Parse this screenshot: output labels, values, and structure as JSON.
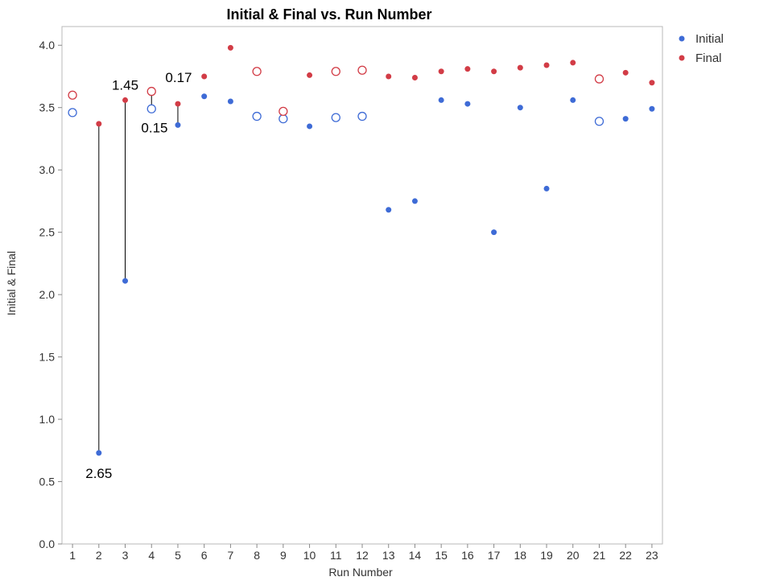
{
  "chart_data": {
    "type": "scatter",
    "title": "Initial & Final vs. Run Number",
    "xlabel": "Run Number",
    "ylabel": "Initial & Final",
    "x": [
      1,
      2,
      3,
      4,
      5,
      6,
      7,
      8,
      9,
      10,
      11,
      12,
      13,
      14,
      15,
      16,
      17,
      18,
      19,
      20,
      21,
      22,
      23
    ],
    "xlim": [
      0.6,
      23.4
    ],
    "ylim": [
      0,
      4.15
    ],
    "yticks": [
      0.0,
      0.5,
      1.0,
      1.5,
      2.0,
      2.5,
      3.0,
      3.5,
      4.0
    ],
    "ytick_labels": [
      "0.0",
      "0.5",
      "1.0",
      "1.5",
      "2.0",
      "2.5",
      "3.0",
      "3.5",
      "4.0"
    ],
    "xtick_labels": [
      "1",
      "2",
      "3",
      "4",
      "5",
      "6",
      "7",
      "8",
      "9",
      "10",
      "11",
      "12",
      "13",
      "14",
      "15",
      "16",
      "17",
      "18",
      "19",
      "20",
      "21",
      "22",
      "23"
    ],
    "grid": false,
    "legend_position": "top-right",
    "series": [
      {
        "name": "Initial",
        "color": "#3e6bd6",
        "values": [
          3.46,
          0.73,
          2.11,
          3.49,
          3.36,
          3.59,
          3.55,
          3.43,
          3.41,
          3.35,
          3.42,
          3.43,
          2.68,
          2.75,
          3.56,
          3.53,
          2.5,
          3.5,
          2.85,
          3.56,
          3.39,
          3.41,
          3.49
        ],
        "hollow": [
          true,
          false,
          false,
          true,
          false,
          false,
          false,
          true,
          true,
          false,
          true,
          true,
          false,
          false,
          false,
          false,
          false,
          false,
          false,
          false,
          true,
          false,
          false
        ]
      },
      {
        "name": "Final",
        "color": "#d23c46",
        "values": [
          3.6,
          3.37,
          3.56,
          3.63,
          3.53,
          3.75,
          3.98,
          3.79,
          3.47,
          3.76,
          3.79,
          3.8,
          3.75,
          3.74,
          3.79,
          3.81,
          3.79,
          3.82,
          3.84,
          3.86,
          3.73,
          3.78,
          3.7
        ],
        "hollow": [
          true,
          false,
          false,
          true,
          false,
          false,
          false,
          true,
          true,
          false,
          true,
          true,
          false,
          false,
          false,
          false,
          false,
          false,
          false,
          false,
          true,
          false,
          false
        ]
      }
    ],
    "annotations": [
      {
        "x": 2,
        "text": "2.65",
        "place": "below"
      },
      {
        "x": 3,
        "text": "1.45",
        "place": "above"
      },
      {
        "x": 4,
        "text": "",
        "place": "none"
      },
      {
        "x": 5,
        "text": "0.17",
        "place": "above-left"
      },
      {
        "x": 5,
        "text": "0.15",
        "place": "below-left"
      }
    ]
  }
}
